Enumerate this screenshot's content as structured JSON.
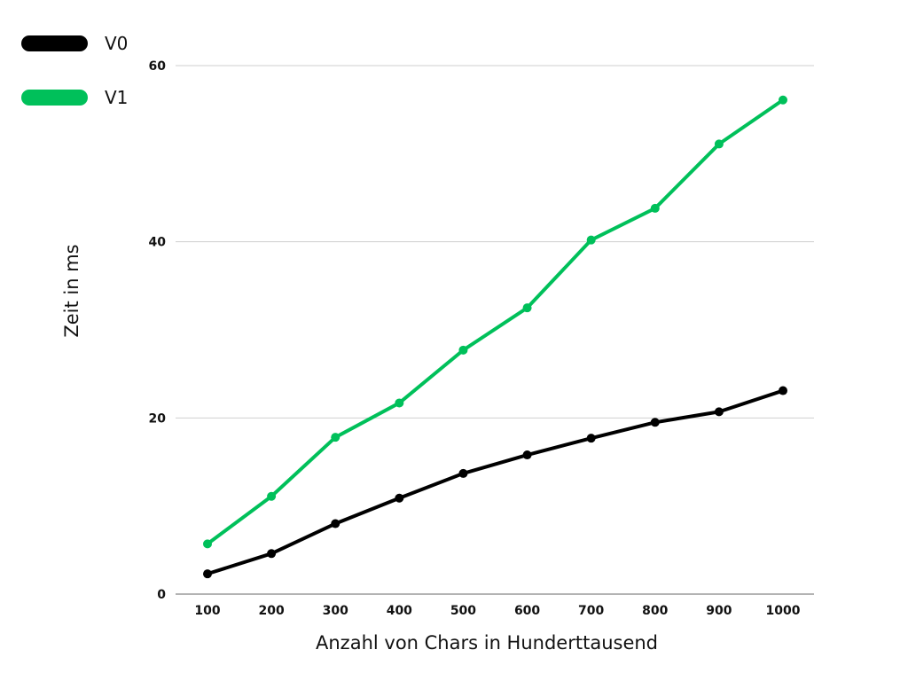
{
  "chart_data": {
    "type": "line",
    "xlabel": "Anzahl von Chars in Hunderttausend",
    "ylabel": "Zeit in ms",
    "x": [
      100,
      200,
      300,
      400,
      500,
      600,
      700,
      800,
      900,
      1000
    ],
    "ylim": [
      0,
      60
    ],
    "yticks": [
      0,
      20,
      40,
      60
    ],
    "grid": true,
    "legend_position": "top-left",
    "series": [
      {
        "name": "V0",
        "color": "#000000",
        "values": [
          2.3,
          4.6,
          8.0,
          10.9,
          13.7,
          15.8,
          17.7,
          19.5,
          20.7,
          23.1
        ]
      },
      {
        "name": "V1",
        "color": "#00c05a",
        "values": [
          5.7,
          11.1,
          17.8,
          21.7,
          27.7,
          32.5,
          40.2,
          43.8,
          51.1,
          56.1
        ]
      }
    ]
  }
}
